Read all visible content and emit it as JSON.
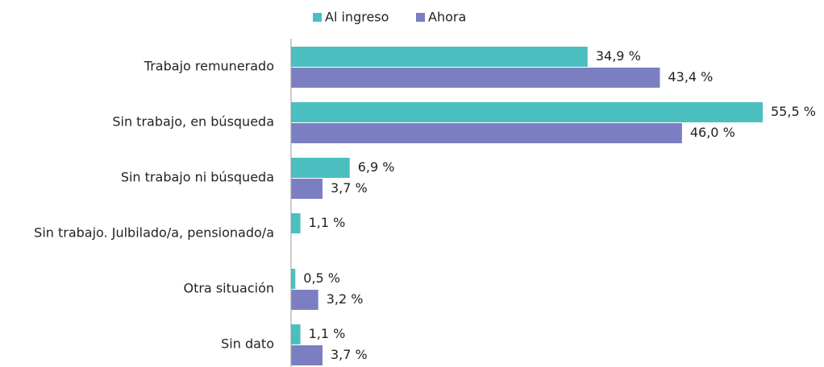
{
  "chart_data": {
    "type": "barh",
    "categories": [
      "Trabajo remunerado",
      "Sin trabajo, en búsqueda",
      "Sin trabajo ni búsqueda",
      "Sin trabajo. Julbilado/a, pensionado/a",
      "Otra situación",
      "Sin dato"
    ],
    "series": [
      {
        "name": "Al ingreso",
        "color": "#4bbfc0",
        "values": [
          34.9,
          55.5,
          6.9,
          1.1,
          0.5,
          1.1
        ],
        "value_labels": [
          "34,9 %",
          "55,5 %",
          "6,9 %",
          "1,1 %",
          "0,5 %",
          "1,1 %"
        ]
      },
      {
        "name": "Ahora",
        "color": "#7b7fc2",
        "values": [
          43.4,
          46.0,
          3.7,
          null,
          3.2,
          3.7
        ],
        "value_labels": [
          "43,4 %",
          "46,0 %",
          "3,7 %",
          null,
          "3,2 %",
          "3,7 %"
        ]
      }
    ],
    "legend": "top"
  }
}
